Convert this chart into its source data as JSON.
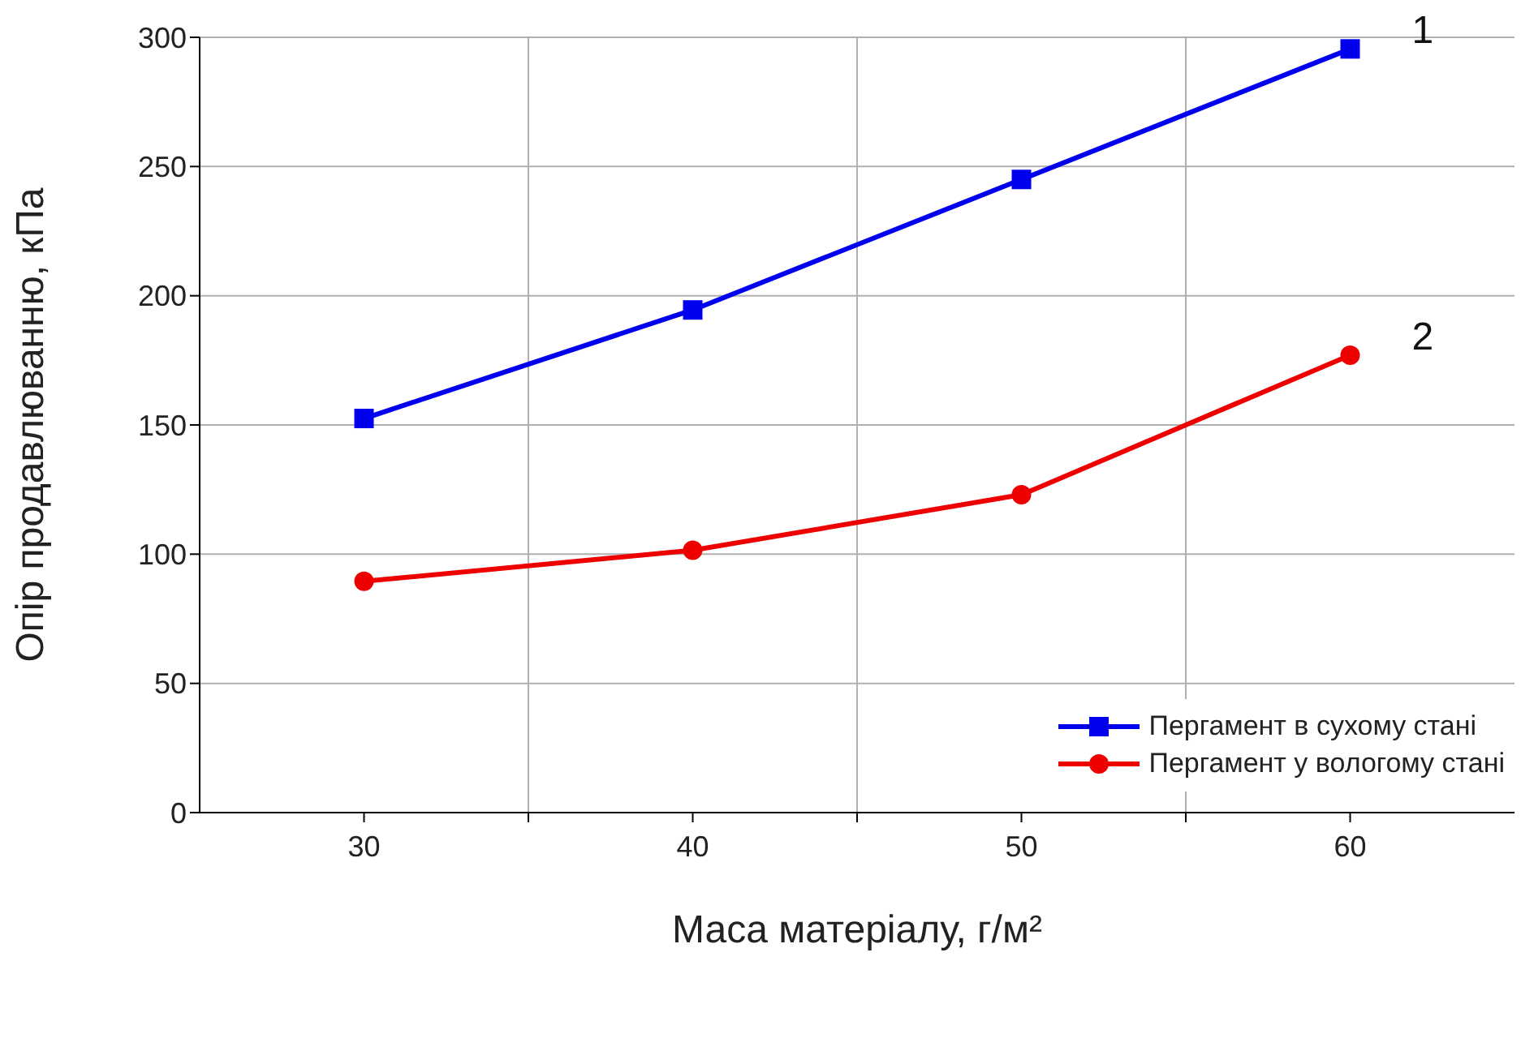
{
  "chart_data": {
    "type": "line",
    "xlabel": "Маса матеріалу, г/м²",
    "ylabel": "Опір продавлюванню, кПа",
    "x": [
      30,
      40,
      50,
      60
    ],
    "series": [
      {
        "name": "Пергамент в сухому стані",
        "color": "#0000ee",
        "marker": "square",
        "values": [
          152.5,
          194.5,
          245,
          295.5
        ]
      },
      {
        "name": "Пергамент у вологому стані",
        "color": "#ee0000",
        "marker": "circle",
        "values": [
          89.5,
          101.5,
          123,
          177
        ]
      }
    ],
    "xlim": [
      25,
      65
    ],
    "xticks": [
      30,
      {
        "value": 35,
        "label": null
      },
      40,
      {
        "value": 45,
        "label": null
      },
      50,
      {
        "value": 55,
        "label": null
      },
      60
    ],
    "ylim": [
      0,
      300
    ],
    "yticks": [
      0,
      50,
      100,
      150,
      200,
      250,
      300
    ],
    "grid": true,
    "legend": "bottom right",
    "line_style": "solid",
    "annotations": [
      "1",
      "2"
    ]
  }
}
